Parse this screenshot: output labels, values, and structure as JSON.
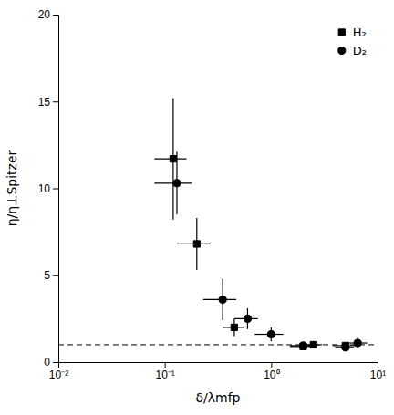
{
  "chart_data": {
    "type": "scatter",
    "title": "",
    "x_label": "δ/λmfp",
    "y_label": "η/η⊥Spitzer",
    "log": "x",
    "xlim": [
      0.01,
      10
    ],
    "ylim": [
      0,
      20
    ],
    "xticks": [
      {
        "value": 0.01,
        "label": "10⁻²"
      },
      {
        "value": 0.1,
        "label": "10⁻¹"
      },
      {
        "value": 1,
        "label": "10⁰"
      },
      {
        "value": 10,
        "label": "10¹"
      }
    ],
    "yticks": [
      0,
      5,
      10,
      15,
      20
    ],
    "grid": false,
    "legend": "upper right",
    "hlines": [
      {
        "y": 1.0,
        "line_style": "dashed",
        "color": "black"
      }
    ],
    "series": [
      {
        "name": "H₂",
        "color": "black",
        "marker": "square",
        "x": [
          0.12,
          0.2,
          0.45,
          2.0,
          2.5,
          5.0
        ],
        "values": [
          11.7,
          6.8,
          2.0,
          0.9,
          1.0,
          0.95
        ],
        "xerr_lo": [
          0.04,
          0.07,
          0.1,
          0.5,
          0.5,
          1.2
        ],
        "xerr_hi": [
          0.04,
          0.07,
          0.1,
          0.5,
          0.5,
          1.2
        ],
        "yerr_lo": [
          3.5,
          1.5,
          0.5,
          0.2,
          0.2,
          0.15
        ],
        "yerr_hi": [
          3.5,
          1.5,
          0.5,
          0.2,
          0.2,
          0.15
        ]
      },
      {
        "name": "D₂",
        "color": "black",
        "marker": "circle",
        "x": [
          0.13,
          0.35,
          0.6,
          1.0,
          2.0,
          5.0,
          6.5
        ],
        "values": [
          10.3,
          3.6,
          2.5,
          1.6,
          0.95,
          0.85,
          1.1
        ],
        "xerr_lo": [
          0.05,
          0.12,
          0.15,
          0.3,
          0.5,
          1.0,
          1.5
        ],
        "xerr_hi": [
          0.05,
          0.12,
          0.15,
          0.3,
          0.5,
          1.0,
          1.5
        ],
        "yerr_lo": [
          1.8,
          1.2,
          0.6,
          0.4,
          0.2,
          0.15,
          0.3
        ],
        "yerr_hi": [
          1.8,
          1.2,
          0.6,
          0.4,
          0.2,
          0.15,
          0.3
        ]
      }
    ]
  }
}
